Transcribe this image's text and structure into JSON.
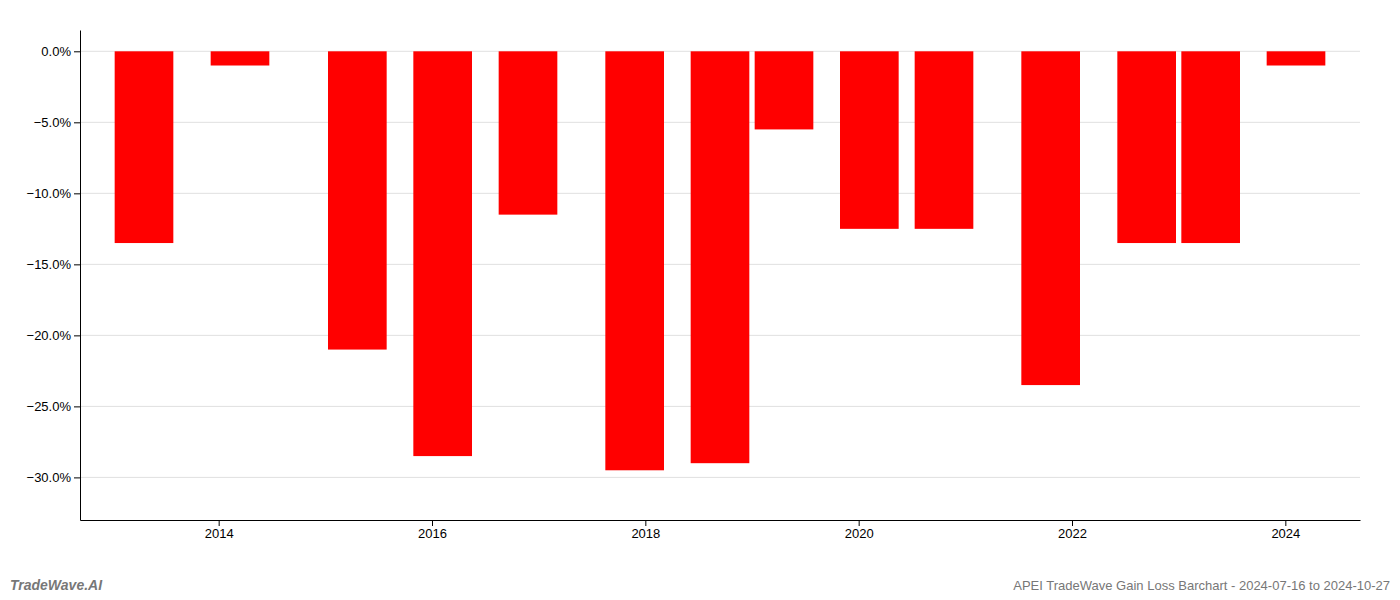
{
  "chart_data": {
    "type": "bar",
    "x": [
      2013.3,
      2014.2,
      2015.3,
      2016.1,
      2016.9,
      2017.9,
      2018.7,
      2019.3,
      2020.1,
      2020.8,
      2021.8,
      2022.7,
      2023.3,
      2024.1
    ],
    "values": [
      -13.5,
      -1.0,
      -21.0,
      -28.5,
      -11.5,
      -29.5,
      -29.0,
      -5.5,
      -12.5,
      -12.5,
      -23.5,
      -13.5,
      -13.5,
      -1.0
    ],
    "color": "#ff0000",
    "xlim": [
      2012.7,
      2024.7
    ],
    "xticks": [
      2014,
      2016,
      2018,
      2020,
      2022,
      2024
    ],
    "ylim": [
      -33,
      1.5
    ],
    "yticks": [
      {
        "value": 0.0,
        "label": "0.0%"
      },
      {
        "value": -5.0,
        "label": "−5.0%"
      },
      {
        "value": -10.0,
        "label": "−10.0%"
      },
      {
        "value": -15.0,
        "label": "−15.0%"
      },
      {
        "value": -20.0,
        "label": "−20.0%"
      },
      {
        "value": -25.0,
        "label": "−25.0%"
      },
      {
        "value": -30.0,
        "label": "−30.0%"
      }
    ],
    "grid": true,
    "annotations": [
      "TradeWave.AI",
      "APEI TradeWave Gain Loss Barchart - 2024-07-16 to 2024-10-27"
    ]
  }
}
